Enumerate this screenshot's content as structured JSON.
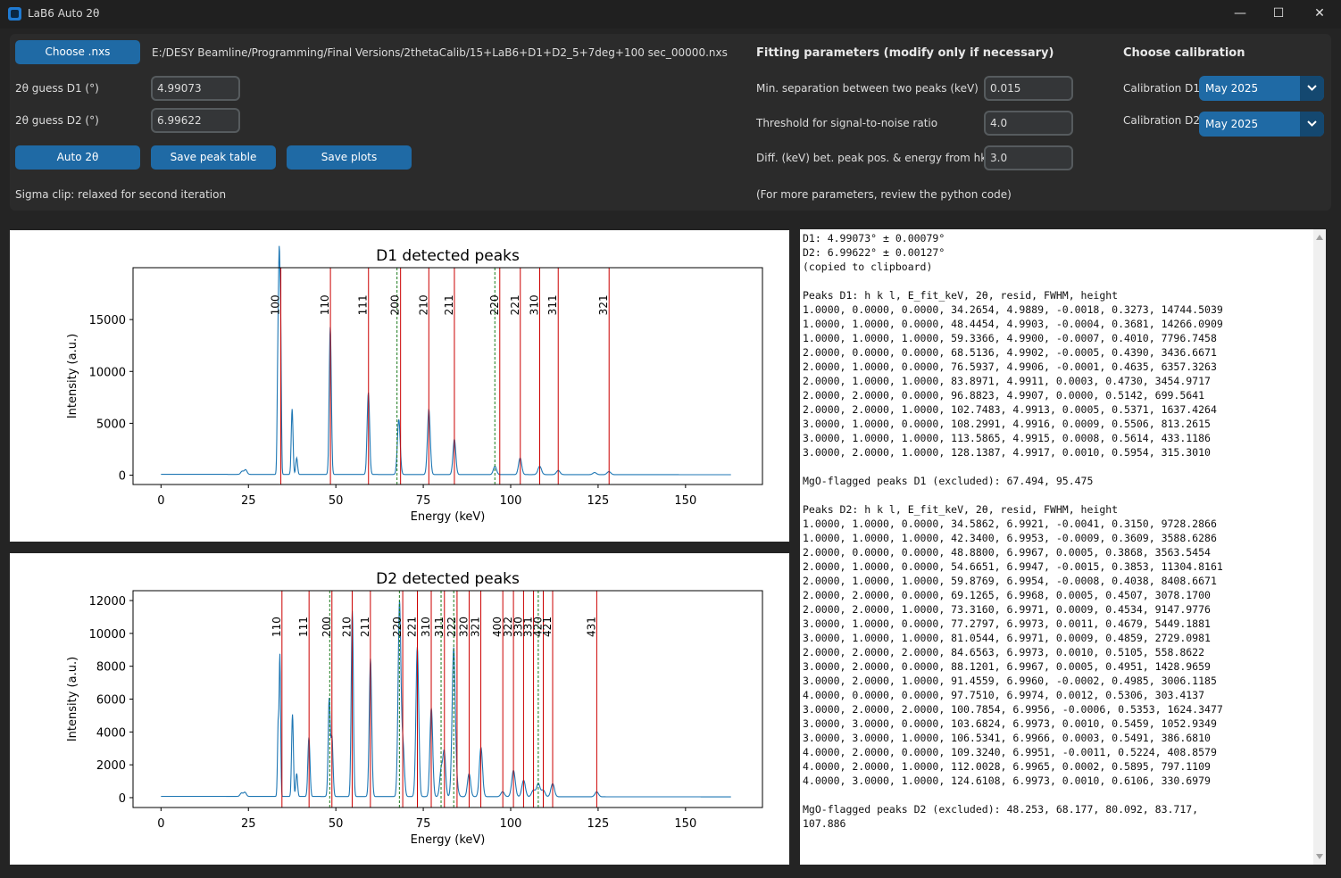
{
  "window": {
    "title": "LaB6 Auto 2θ",
    "minimize": "—",
    "maximize": "☐",
    "close": "✕"
  },
  "controls": {
    "choose_button": "Choose .nxs",
    "file_path": "E:/DESY Beamline/Programming/Final Versions/2thetaCalib/15+LaB6+D1+D2_5+7deg+100 sec_00000.nxs",
    "guess_d1_label": "2θ guess D1 (°)",
    "guess_d1_value": "4.99073",
    "guess_d2_label": "2θ guess D2 (°)",
    "guess_d2_value": "6.99622",
    "auto_button": "Auto 2θ",
    "save_table_button": "Save peak table",
    "save_plots_button": "Save plots",
    "sigma_note": "Sigma clip: relaxed for second iteration"
  },
  "fitting": {
    "header": "Fitting parameters (modify only if necessary)",
    "min_sep_label": "Min. separation between two peaks (keV)",
    "min_sep_value": "0.015",
    "snr_label": "Threshold for signal-to-noise ratio",
    "snr_value": "4.0",
    "diff_label": "Diff. (keV) bet. peak pos. & energy from hkl",
    "diff_value": "3.0",
    "note": "(For more parameters, review the python code)"
  },
  "calibration": {
    "header": "Choose calibration",
    "d1_label": "Calibration D1",
    "d1_value": "May 2025",
    "d2_label": "Calibration D2",
    "d2_value": "May 2025"
  },
  "chart_data": [
    {
      "type": "line",
      "title": "D1 detected peaks",
      "xlabel": "Energy (keV)",
      "ylabel": "Intensity (a.u.)",
      "xlim": [
        -8,
        172
      ],
      "ylim": [
        -900,
        20000
      ],
      "xticks": [
        0,
        25,
        50,
        75,
        100,
        125,
        150
      ],
      "yticks": [
        0,
        5000,
        10000,
        15000
      ],
      "series_color": "#1f77b4",
      "baseline": 80,
      "spectrum_peaks": [
        [
          23.2,
          300,
          0.4
        ],
        [
          24.2,
          450,
          0.4
        ],
        [
          33.4,
          10500,
          0.2
        ],
        [
          33.8,
          18700,
          0.2
        ],
        [
          34.2,
          14000,
          0.2
        ],
        [
          37.5,
          6300,
          0.25
        ],
        [
          38.8,
          1600,
          0.25
        ],
        [
          48.4,
          14200,
          0.3
        ],
        [
          59.3,
          7900,
          0.35
        ],
        [
          68.0,
          5300,
          0.4
        ],
        [
          76.6,
          6300,
          0.4
        ],
        [
          83.9,
          3400,
          0.4
        ],
        [
          95.5,
          800,
          0.45
        ],
        [
          102.7,
          1600,
          0.45
        ],
        [
          108.3,
          800,
          0.5
        ],
        [
          113.6,
          400,
          0.5
        ],
        [
          124,
          200,
          0.5
        ],
        [
          128.1,
          300,
          0.5
        ]
      ],
      "peak_lines": [
        34.27,
        48.45,
        59.34,
        68.51,
        76.59,
        83.9,
        96.88,
        102.75,
        108.3,
        113.59,
        128.14
      ],
      "peak_labels": [
        "100",
        "110",
        "111",
        "200",
        "210",
        "211",
        "220",
        "221",
        "310",
        "311",
        "321"
      ],
      "mgo_lines": [
        67.494,
        95.475
      ],
      "label_y": 16400
    },
    {
      "type": "line",
      "title": "D2 detected peaks",
      "xlabel": "Energy (keV)",
      "ylabel": "Intensity (a.u.)",
      "xlim": [
        -8,
        172
      ],
      "ylim": [
        -600,
        12600
      ],
      "xticks": [
        0,
        25,
        50,
        75,
        100,
        125,
        150
      ],
      "yticks": [
        0,
        2000,
        4000,
        6000,
        8000,
        10000,
        12000
      ],
      "series_color": "#1f77b4",
      "baseline": 80,
      "spectrum_peaks": [
        [
          23.0,
          200,
          0.4
        ],
        [
          24.0,
          250,
          0.4
        ],
        [
          33.5,
          4300,
          0.2
        ],
        [
          34.0,
          8500,
          0.2
        ],
        [
          37.6,
          5000,
          0.25
        ],
        [
          38.8,
          1400,
          0.25
        ],
        [
          42.3,
          3600,
          0.3
        ],
        [
          48.1,
          5900,
          0.3
        ],
        [
          48.9,
          3500,
          0.3
        ],
        [
          54.7,
          11300,
          0.3
        ],
        [
          59.9,
          8400,
          0.35
        ],
        [
          68.2,
          11800,
          0.4
        ],
        [
          69.2,
          3000,
          0.4
        ],
        [
          73.3,
          9100,
          0.4
        ],
        [
          77.3,
          5400,
          0.4
        ],
        [
          80.1,
          1600,
          0.4
        ],
        [
          81.0,
          2700,
          0.4
        ],
        [
          83.7,
          9000,
          0.45
        ],
        [
          84.6,
          550,
          0.45
        ],
        [
          88.1,
          1400,
          0.45
        ],
        [
          91.5,
          3000,
          0.45
        ],
        [
          97.7,
          300,
          0.5
        ],
        [
          100.8,
          1600,
          0.5
        ],
        [
          103.7,
          1000,
          0.5
        ],
        [
          106.5,
          400,
          0.5
        ],
        [
          107.9,
          800,
          0.5
        ],
        [
          109.3,
          400,
          0.5
        ],
        [
          112.0,
          800,
          0.5
        ],
        [
          124.6,
          300,
          0.5
        ]
      ],
      "peak_lines": [
        34.59,
        42.34,
        48.88,
        54.67,
        59.88,
        69.13,
        73.32,
        77.28,
        81.05,
        84.66,
        88.12,
        91.46,
        97.75,
        100.79,
        103.68,
        106.53,
        109.32,
        112.0,
        124.61
      ],
      "peak_labels": [
        "110",
        "111",
        "200",
        "210",
        "211",
        "220",
        "221",
        "310",
        "311",
        "222",
        "320",
        "321",
        "400",
        "322",
        "330",
        "331",
        "420",
        "421",
        "431"
      ],
      "mgo_lines": [
        48.253,
        68.177,
        80.092,
        83.717,
        107.886
      ],
      "label_y": 10400
    }
  ],
  "output_text": [
    "D1: 4.99073° ± 0.00079°",
    "D2: 6.99622° ± 0.00127°",
    "(copied to clipboard)",
    "",
    "Peaks D1: h k l, E_fit_keV, 2θ, resid, FWHM, height",
    "1.0000, 0.0000, 0.0000, 34.2654, 4.9889, -0.0018, 0.3273, 14744.5039",
    "1.0000, 1.0000, 0.0000, 48.4454, 4.9903, -0.0004, 0.3681, 14266.0909",
    "1.0000, 1.0000, 1.0000, 59.3366, 4.9900, -0.0007, 0.4010, 7796.7458",
    "2.0000, 0.0000, 0.0000, 68.5136, 4.9902, -0.0005, 0.4390, 3436.6671",
    "2.0000, 1.0000, 0.0000, 76.5937, 4.9906, -0.0001, 0.4635, 6357.3263",
    "2.0000, 1.0000, 1.0000, 83.8971, 4.9911, 0.0003, 0.4730, 3454.9717",
    "2.0000, 2.0000, 0.0000, 96.8823, 4.9907, 0.0000, 0.5142, 699.5641",
    "2.0000, 2.0000, 1.0000, 102.7483, 4.9913, 0.0005, 0.5371, 1637.4264",
    "3.0000, 1.0000, 0.0000, 108.2991, 4.9916, 0.0009, 0.5506, 813.2615",
    "3.0000, 1.0000, 1.0000, 113.5865, 4.9915, 0.0008, 0.5614, 433.1186",
    "3.0000, 2.0000, 1.0000, 128.1387, 4.9917, 0.0010, 0.5954, 315.3010",
    "",
    "MgO-flagged peaks D1 (excluded): 67.494, 95.475",
    "",
    "Peaks D2: h k l, E_fit_keV, 2θ, resid, FWHM, height",
    "1.0000, 1.0000, 0.0000, 34.5862, 6.9921, -0.0041, 0.3150, 9728.2866",
    "1.0000, 1.0000, 1.0000, 42.3400, 6.9953, -0.0009, 0.3609, 3588.6286",
    "2.0000, 0.0000, 0.0000, 48.8800, 6.9967, 0.0005, 0.3868, 3563.5454",
    "2.0000, 1.0000, 0.0000, 54.6651, 6.9947, -0.0015, 0.3853, 11304.8161",
    "2.0000, 1.0000, 1.0000, 59.8769, 6.9954, -0.0008, 0.4038, 8408.6671",
    "2.0000, 2.0000, 0.0000, 69.1265, 6.9968, 0.0005, 0.4507, 3078.1700",
    "2.0000, 2.0000, 1.0000, 73.3160, 6.9971, 0.0009, 0.4534, 9147.9776",
    "3.0000, 1.0000, 0.0000, 77.2797, 6.9973, 0.0011, 0.4679, 5449.1881",
    "3.0000, 1.0000, 1.0000, 81.0544, 6.9971, 0.0009, 0.4859, 2729.0981",
    "2.0000, 2.0000, 2.0000, 84.6563, 6.9973, 0.0010, 0.5105, 558.8622",
    "3.0000, 2.0000, 0.0000, 88.1201, 6.9967, 0.0005, 0.4951, 1428.9659",
    "3.0000, 2.0000, 1.0000, 91.4559, 6.9960, -0.0002, 0.4985, 3006.1185",
    "4.0000, 0.0000, 0.0000, 97.7510, 6.9974, 0.0012, 0.5306, 303.4137",
    "3.0000, 2.0000, 2.0000, 100.7854, 6.9956, -0.0006, 0.5353, 1624.3477",
    "3.0000, 3.0000, 0.0000, 103.6824, 6.9973, 0.0010, 0.5459, 1052.9349",
    "3.0000, 3.0000, 1.0000, 106.5341, 6.9966, 0.0003, 0.5491, 386.6810",
    "4.0000, 2.0000, 0.0000, 109.3240, 6.9951, -0.0011, 0.5224, 408.8579",
    "4.0000, 2.0000, 1.0000, 112.0028, 6.9965, 0.0002, 0.5895, 797.1109",
    "4.0000, 3.0000, 1.0000, 124.6108, 6.9973, 0.0010, 0.6106, 330.6979",
    "",
    "MgO-flagged peaks D2 (excluded): 48.253, 68.177, 80.092, 83.717,",
    "107.886"
  ]
}
